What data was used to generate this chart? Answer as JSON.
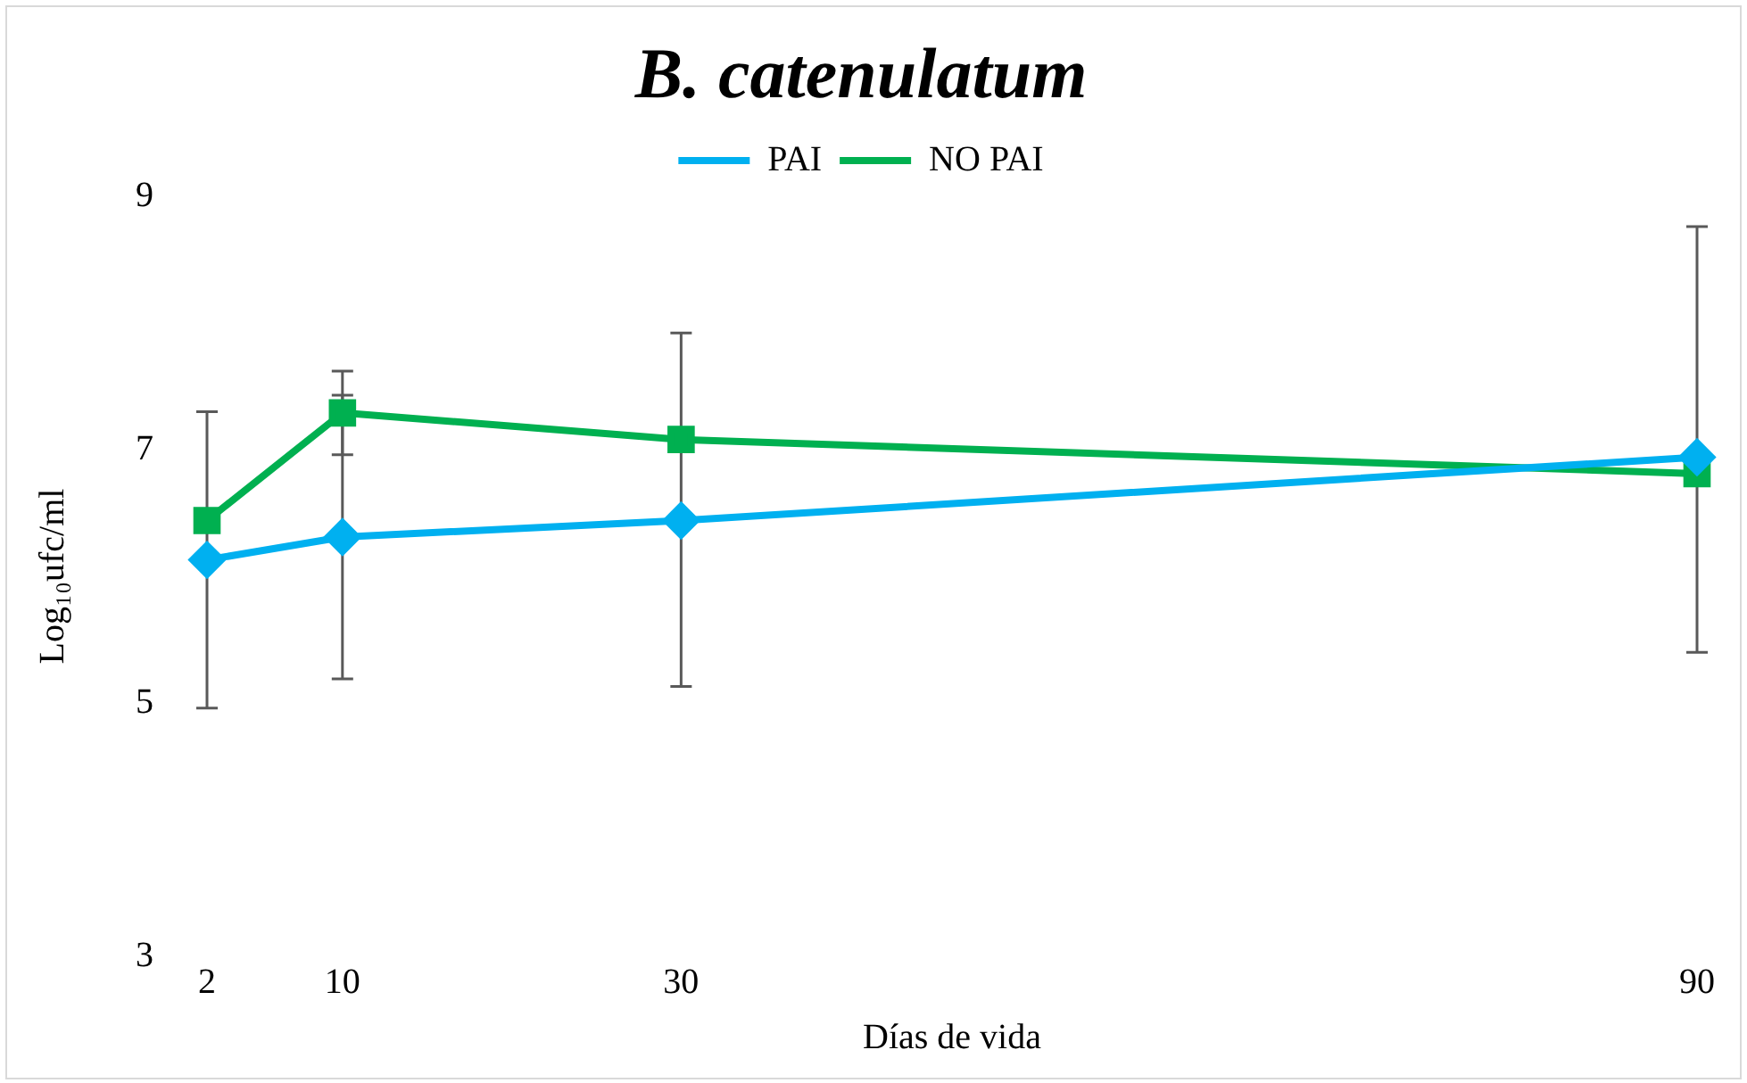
{
  "chart_data": {
    "type": "line",
    "title": "B. catenulatum",
    "xlabel": "Días de vida",
    "ylabel": "Log₁₀ufc/ml",
    "x": [
      2,
      10,
      30,
      90
    ],
    "xlim": [
      2,
      90
    ],
    "xticks": [
      2,
      10,
      30,
      90
    ],
    "ylim": [
      3,
      9
    ],
    "yticks": [
      3,
      5,
      7,
      9
    ],
    "grid": false,
    "legend": "top",
    "series": [
      {
        "name": "PAI",
        "color": "#00b0f0",
        "marker": "diamond",
        "values": [
          6.13,
          6.31,
          6.44,
          6.94
        ],
        "errors": [
          1.17,
          1.12,
          [
            5.13,
            7.92
          ],
          [
            5.4,
            8.76
          ]
        ]
      },
      {
        "name": "NO PAI",
        "color": "#00b050",
        "marker": "square",
        "values": [
          6.44,
          7.29,
          7.08,
          6.81
        ],
        "errors": [
          null,
          0.33,
          null,
          null
        ]
      }
    ]
  }
}
